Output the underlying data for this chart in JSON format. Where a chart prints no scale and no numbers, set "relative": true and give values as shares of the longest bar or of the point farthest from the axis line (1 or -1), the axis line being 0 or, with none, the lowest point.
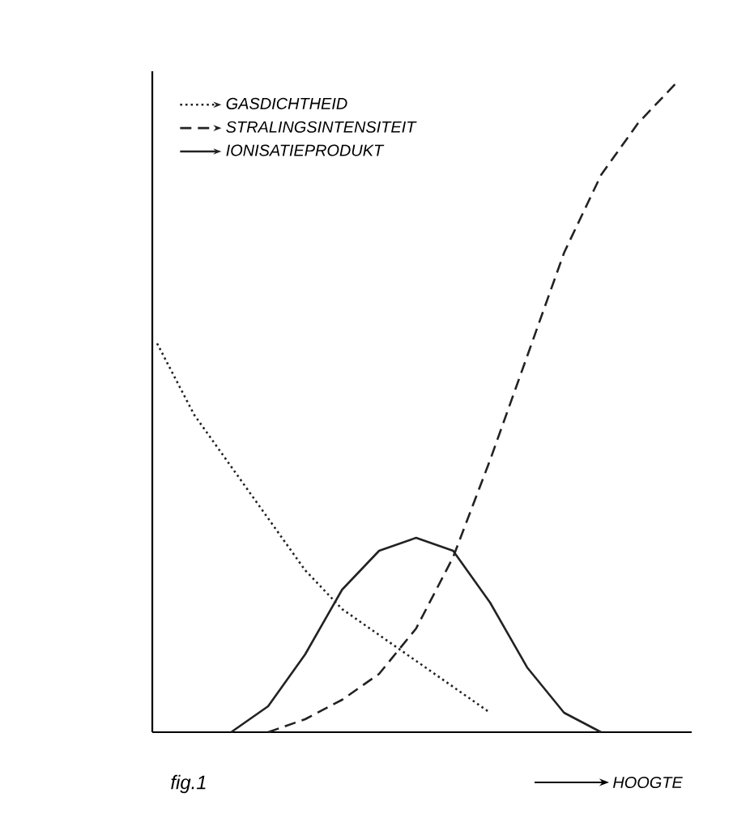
{
  "chart_data": {
    "type": "line",
    "relative": true,
    "xlabel": "HOOGTE",
    "legend": "top left",
    "annotations": [
      "fig.1"
    ],
    "categories": [
      null,
      null,
      null,
      null,
      null,
      null,
      null,
      null,
      null,
      null,
      null,
      null,
      null,
      null,
      null
    ],
    "series": [
      {
        "name": "GASDICHTHEID",
        "color": "#222222",
        "line_style": "dotted",
        "values": [
          0.6,
          0.49,
          0.41,
          0.33,
          0.25,
          0.19,
          0.15,
          0.11,
          0.07,
          0.03,
          null,
          null,
          null,
          null,
          null
        ]
      },
      {
        "name": "STRALINGSINTENSITEIT",
        "color": "#222222",
        "line_style": "dashed",
        "values": [
          null,
          null,
          null,
          0.0,
          0.02,
          0.05,
          0.09,
          0.16,
          0.27,
          0.42,
          0.58,
          0.74,
          0.86,
          0.94,
          1.0
        ]
      },
      {
        "name": "IONISATIEPRODUKT",
        "color": "#222222",
        "line_style": "solid",
        "values": [
          null,
          null,
          0.0,
          0.04,
          0.12,
          0.22,
          0.28,
          0.3,
          0.28,
          0.2,
          0.1,
          0.03,
          0.0,
          null,
          null
        ]
      }
    ]
  }
}
